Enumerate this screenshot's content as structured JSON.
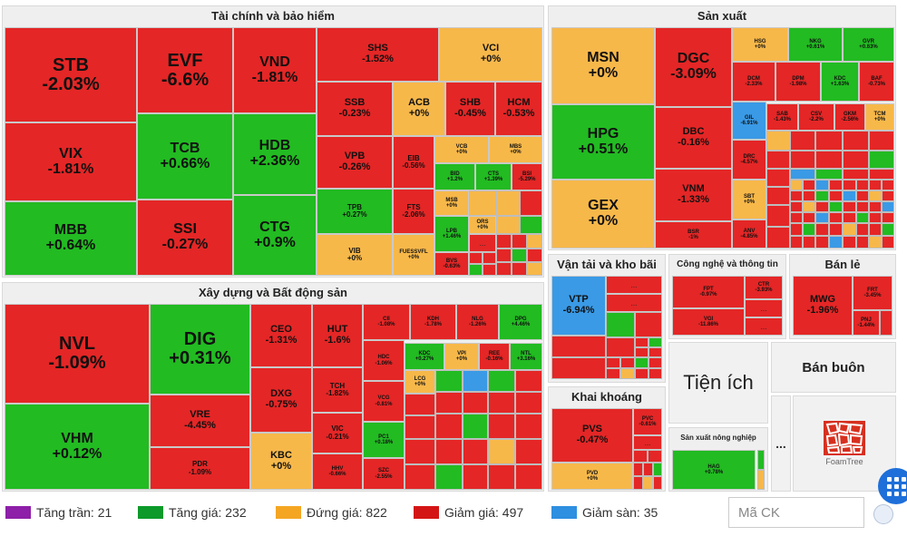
{
  "sectors": {
    "finance": "Tài chính và bảo hiểm",
    "construction": "Xây dựng và Bất động sản",
    "manufacturing": "Sản xuất",
    "transport": "Vận tải và kho bãi",
    "tech": "Công nghệ và thông tin",
    "retail": "Bán lẻ",
    "mining": "Khai khoáng",
    "utilities": "Tiện ích",
    "wholesale": "Bán buôn",
    "agriculture": "Sản xuất nông nghiệp"
  },
  "tiles": [
    {
      "sym": "STB",
      "chg": "-2.03%",
      "color": "r"
    },
    {
      "sym": "VIX",
      "chg": "-1.81%",
      "color": "r"
    },
    {
      "sym": "MBB",
      "chg": "+0.64%",
      "color": "g"
    },
    {
      "sym": "EVF",
      "chg": "-6.6%",
      "color": "r"
    },
    {
      "sym": "TCB",
      "chg": "+0.66%",
      "color": "g"
    },
    {
      "sym": "SSI",
      "chg": "-0.27%",
      "color": "r"
    },
    {
      "sym": "VND",
      "chg": "-1.81%",
      "color": "r"
    },
    {
      "sym": "HDB",
      "chg": "+2.36%",
      "color": "g"
    },
    {
      "sym": "CTG",
      "chg": "+0.9%",
      "color": "g"
    },
    {
      "sym": "SHS",
      "chg": "-1.52%",
      "color": "r"
    },
    {
      "sym": "VCI",
      "chg": "+0%",
      "color": "y"
    },
    {
      "sym": "SSB",
      "chg": "-0.23%",
      "color": "r"
    },
    {
      "sym": "ACB",
      "chg": "+0%",
      "color": "y"
    },
    {
      "sym": "SHB",
      "chg": "-0.45%",
      "color": "r"
    },
    {
      "sym": "HCM",
      "chg": "-0.53%",
      "color": "r"
    },
    {
      "sym": "VPB",
      "chg": "-0.26%",
      "color": "r"
    },
    {
      "sym": "EIB",
      "chg": "-0.56%",
      "color": "r"
    },
    {
      "sym": "VCB",
      "chg": "+0%",
      "color": "y"
    },
    {
      "sym": "MBS",
      "chg": "+0%",
      "color": "y"
    },
    {
      "sym": "BID",
      "chg": "+1.2%",
      "color": "g"
    },
    {
      "sym": "CTS",
      "chg": "+1.39%",
      "color": "g"
    },
    {
      "sym": "BSI",
      "chg": "-5.29%",
      "color": "r"
    },
    {
      "sym": "TPB",
      "chg": "+0.27%",
      "color": "g"
    },
    {
      "sym": "FTS",
      "chg": "-2.06%",
      "color": "r"
    },
    {
      "sym": "MSB",
      "chg": "+0%",
      "color": "y"
    },
    {
      "sym": "ORS",
      "chg": "+0%",
      "color": "y"
    },
    {
      "sym": "LPB",
      "chg": "+1.46%",
      "color": "g"
    },
    {
      "sym": "VIB",
      "chg": "+0%",
      "color": "y"
    },
    {
      "sym": "FUESSVFL",
      "chg": "+0%",
      "color": "y"
    },
    {
      "sym": "BVS",
      "chg": "-0.63%",
      "color": "r"
    },
    {
      "sym": "NVL",
      "chg": "-1.09%",
      "color": "r"
    },
    {
      "sym": "VHM",
      "chg": "+0.12%",
      "color": "g"
    },
    {
      "sym": "DIG",
      "chg": "+0.31%",
      "color": "g"
    },
    {
      "sym": "VRE",
      "chg": "-4.45%",
      "color": "r"
    },
    {
      "sym": "PDR",
      "chg": "-1.09%",
      "color": "r"
    },
    {
      "sym": "CEO",
      "chg": "-1.31%",
      "color": "r"
    },
    {
      "sym": "DXG",
      "chg": "-0.75%",
      "color": "r"
    },
    {
      "sym": "KBC",
      "chg": "+0%",
      "color": "y"
    },
    {
      "sym": "HUT",
      "chg": "-1.6%",
      "color": "r"
    },
    {
      "sym": "TCH",
      "chg": "-1.82%",
      "color": "r"
    },
    {
      "sym": "VIC",
      "chg": "-0.21%",
      "color": "r"
    },
    {
      "sym": "HHV",
      "chg": "-0.66%",
      "color": "r"
    },
    {
      "sym": "CII",
      "chg": "-1.08%",
      "color": "r"
    },
    {
      "sym": "KDH",
      "chg": "-1.78%",
      "color": "r"
    },
    {
      "sym": "NLG",
      "chg": "-1.26%",
      "color": "r"
    },
    {
      "sym": "DPG",
      "chg": "+4.46%",
      "color": "g"
    },
    {
      "sym": "HDC",
      "chg": "-1.06%",
      "color": "r"
    },
    {
      "sym": "KDC",
      "chg": "+0.27%",
      "color": "g"
    },
    {
      "sym": "VPI",
      "chg": "+0%",
      "color": "y"
    },
    {
      "sym": "REE",
      "chg": "-0.16%",
      "color": "r"
    },
    {
      "sym": "NTL",
      "chg": "+3.16%",
      "color": "g"
    },
    {
      "sym": "VCG",
      "chg": "-0.81%",
      "color": "r"
    },
    {
      "sym": "LCG",
      "chg": "+0%",
      "color": "y"
    },
    {
      "sym": "PC1",
      "chg": "+0.18%",
      "color": "g"
    },
    {
      "sym": "SZC",
      "chg": "-2.55%",
      "color": "r"
    },
    {
      "sym": "MSN",
      "chg": "+0%",
      "color": "y"
    },
    {
      "sym": "HPG",
      "chg": "+0.51%",
      "color": "g"
    },
    {
      "sym": "GEX",
      "chg": "+0%",
      "color": "y"
    },
    {
      "sym": "DGC",
      "chg": "-3.09%",
      "color": "r"
    },
    {
      "sym": "DBC",
      "chg": "-0.16%",
      "color": "r"
    },
    {
      "sym": "VNM",
      "chg": "-1.33%",
      "color": "r"
    },
    {
      "sym": "BSR",
      "chg": "-1%",
      "color": "r"
    },
    {
      "sym": "HSG",
      "chg": "+0%",
      "color": "y"
    },
    {
      "sym": "NKG",
      "chg": "+0.61%",
      "color": "g"
    },
    {
      "sym": "GVR",
      "chg": "+0.63%",
      "color": "g"
    },
    {
      "sym": "DCM",
      "chg": "-2.33%",
      "color": "r"
    },
    {
      "sym": "DPM",
      "chg": "-1.98%",
      "color": "r"
    },
    {
      "sym": "KDC",
      "chg": "+1.63%",
      "color": "g"
    },
    {
      "sym": "BAF",
      "chg": "-0.73%",
      "color": "r"
    },
    {
      "sym": "GIL",
      "chg": "-6.91%",
      "color": "b"
    },
    {
      "sym": "SAB",
      "chg": "-1.43%",
      "color": "r"
    },
    {
      "sym": "CSV",
      "chg": "-2.2%",
      "color": "r"
    },
    {
      "sym": "GKM",
      "chg": "-2.56%",
      "color": "r"
    },
    {
      "sym": "TCM",
      "chg": "+0%",
      "color": "y"
    },
    {
      "sym": "DRC",
      "chg": "-4.57%",
      "color": "r"
    },
    {
      "sym": "SBT",
      "chg": "+0%",
      "color": "y"
    },
    {
      "sym": "ANV",
      "chg": "-4.85%",
      "color": "r"
    },
    {
      "sym": "VTP",
      "chg": "-6.94%",
      "color": "b"
    },
    {
      "sym": "FPT",
      "chg": "-0.97%",
      "color": "r"
    },
    {
      "sym": "CTR",
      "chg": "-3.93%",
      "color": "r"
    },
    {
      "sym": "VGI",
      "chg": "-11.86%",
      "color": "r"
    },
    {
      "sym": "MWG",
      "chg": "-1.96%",
      "color": "r"
    },
    {
      "sym": "FRT",
      "chg": "-3.45%",
      "color": "r"
    },
    {
      "sym": "PNJ",
      "chg": "-1.44%",
      "color": "r"
    },
    {
      "sym": "PVS",
      "chg": "-0.47%",
      "color": "r"
    },
    {
      "sym": "PVC",
      "chg": "-0.61%",
      "color": "r"
    },
    {
      "sym": "PVD",
      "chg": "+0%",
      "color": "y"
    },
    {
      "sym": "HAG",
      "chg": "+0.78%",
      "color": "g"
    }
  ],
  "ellipsis": "...",
  "legend": [
    {
      "label": "Tăng trần: 21",
      "color": "#8e1fa8"
    },
    {
      "label": "Tăng giá: 232",
      "color": "#0d9a2a"
    },
    {
      "label": "Đứng giá: 822",
      "color": "#f4a623"
    },
    {
      "label": "Giảm giá: 497",
      "color": "#d41515"
    },
    {
      "label": "Giảm sàn: 35",
      "color": "#2f8fe0"
    }
  ],
  "search": {
    "placeholder": "Mã CK"
  },
  "brand": {
    "logo_text": "FoamTree"
  }
}
